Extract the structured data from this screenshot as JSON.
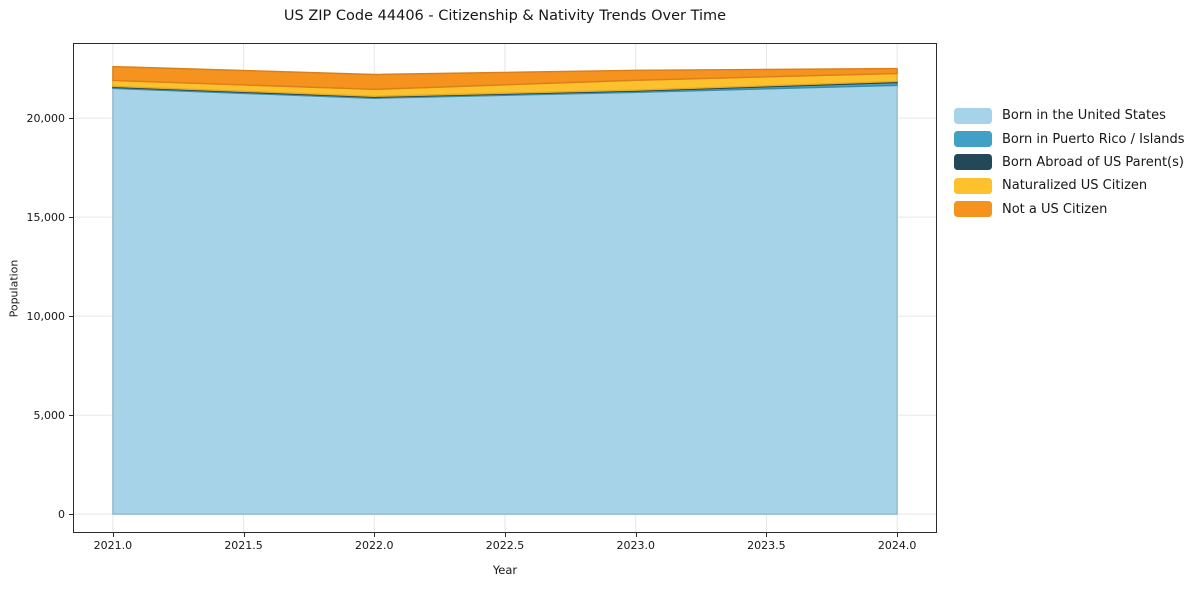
{
  "figure": {
    "title": "US ZIP Code 44406 - Citizenship & Nativity Trends Over Time"
  },
  "chart_data": {
    "type": "area",
    "stacked": true,
    "title": "US ZIP Code 44406 - Citizenship & Nativity Trends Over Time",
    "xlabel": "Year",
    "ylabel": "Population",
    "x": [
      2021,
      2022,
      2023,
      2024
    ],
    "series": [
      {
        "name": "Born in the United States",
        "color": "#a6d3e8",
        "values": [
          21500,
          21000,
          21300,
          21650
        ]
      },
      {
        "name": "Born in Puerto Rico / Islands",
        "color": "#41a0c3",
        "values": [
          60,
          60,
          70,
          150
        ]
      },
      {
        "name": "Born Abroad of US Parent(s)",
        "color": "#23485a",
        "values": [
          40,
          40,
          40,
          50
        ]
      },
      {
        "name": "Naturalized US Citizen",
        "color": "#fdc12d",
        "values": [
          300,
          350,
          500,
          400
        ]
      },
      {
        "name": "Not a US Citizen",
        "color": "#f6921e",
        "values": [
          700,
          750,
          500,
          250
        ]
      }
    ],
    "xlim": [
      2020.8475,
      2024.1525
    ],
    "ylim": [
      -950,
      23790
    ],
    "xticks": {
      "values": [
        2021.0,
        2021.5,
        2022.0,
        2022.5,
        2023.0,
        2023.5,
        2024.0
      ],
      "labels": [
        "2021.0",
        "2021.5",
        "2022.0",
        "2022.5",
        "2023.0",
        "2023.5",
        "2024.0"
      ]
    },
    "yticks": {
      "values": [
        0,
        5000,
        10000,
        15000,
        20000
      ],
      "labels": [
        "0",
        "5,000",
        "10,000",
        "15,000",
        "20,000"
      ]
    },
    "grid": true,
    "grid_color": "#e6e6e6",
    "background_color": "#ffffff",
    "spine_color": "#2b2b2b",
    "legend_position": "right"
  }
}
